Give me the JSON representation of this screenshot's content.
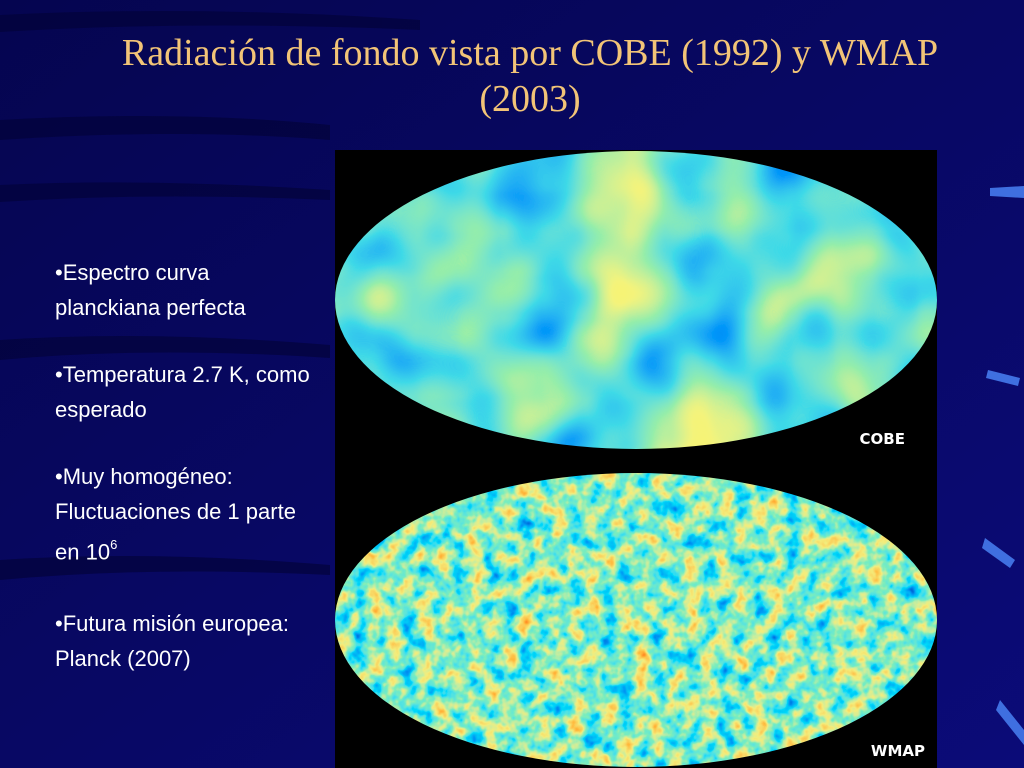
{
  "slide": {
    "title": "Radiación de fondo vista por COBE (1992) y WMAP (2003)",
    "bullets": [
      {
        "text": "•Espectro curva planckiana perfecta"
      },
      {
        "text": "•Temperatura 2.7 K, como esperado"
      },
      {
        "text": "•Muy homogéneo: Fluctuaciones de 1 parte en 10",
        "superscript": "6"
      },
      {
        "text": "•Futura misión europea: Planck (2007)"
      }
    ],
    "image_labels": [
      "COBE",
      "WMAP"
    ]
  }
}
